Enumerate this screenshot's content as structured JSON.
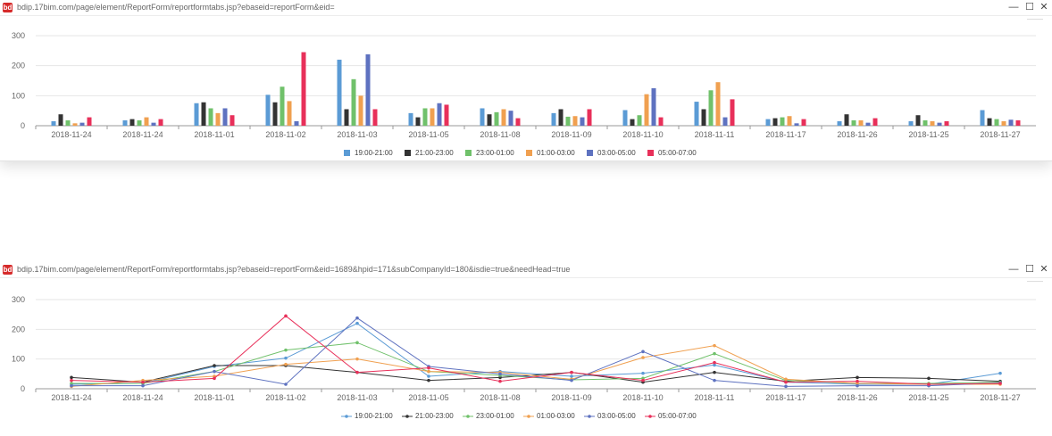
{
  "windows": [
    {
      "url": "bdip.17bim.com/page/element/ReportForm/reportformtabs.jsp?ebaseid=reportForm&eid=",
      "logo": "bd"
    },
    {
      "url": "bdip.17bim.com/page/element/ReportForm/reportformtabs.jsp?ebaseid=reportForm&eid=1689&hpid=171&subCompanyId=180&isdie=true&needHead=true",
      "logo": "bd"
    }
  ],
  "window_controls": {
    "minimize": "—",
    "maximize": "☐",
    "close": "✕"
  },
  "chart_data": [
    {
      "type": "bar",
      "categories": [
        "2018-11-24",
        "2018-11-24",
        "2018-11-01",
        "2018-11-02",
        "2018-11-03",
        "2018-11-05",
        "2018-11-08",
        "2018-11-09",
        "2018-11-10",
        "2018-11-11",
        "2018-11-17",
        "2018-11-26",
        "2018-11-25",
        "2018-11-27"
      ],
      "ylim": [
        0,
        300
      ],
      "yticks": [
        0,
        100,
        200,
        300
      ],
      "grid": true,
      "legend_position": "bottom",
      "series": [
        {
          "name": "19:00-21:00",
          "color": "#5b9bd5",
          "values": [
            15,
            18,
            75,
            103,
            220,
            42,
            58,
            42,
            52,
            80,
            22,
            15,
            15,
            52
          ]
        },
        {
          "name": "21:00-23:00",
          "color": "#333333",
          "values": [
            38,
            22,
            78,
            78,
            55,
            28,
            38,
            55,
            22,
            55,
            25,
            38,
            35,
            25
          ]
        },
        {
          "name": "23:00-01:00",
          "color": "#70c16b",
          "values": [
            18,
            18,
            58,
            130,
            155,
            58,
            45,
            30,
            35,
            118,
            28,
            18,
            18,
            22
          ]
        },
        {
          "name": "01:00-03:00",
          "color": "#f0a050",
          "values": [
            8,
            28,
            42,
            82,
            100,
            58,
            55,
            32,
            105,
            145,
            32,
            18,
            15,
            15
          ]
        },
        {
          "name": "03:00-05:00",
          "color": "#5e72c0",
          "values": [
            10,
            10,
            58,
            15,
            238,
            75,
            50,
            28,
            125,
            28,
            8,
            10,
            10,
            20
          ]
        },
        {
          "name": "05:00-07:00",
          "color": "#e8305a",
          "values": [
            28,
            22,
            35,
            245,
            55,
            70,
            25,
            55,
            28,
            88,
            22,
            25,
            15,
            18
          ]
        }
      ]
    },
    {
      "type": "line",
      "categories": [
        "2018-11-24",
        "2018-11-24",
        "2018-11-01",
        "2018-11-02",
        "2018-11-03",
        "2018-11-05",
        "2018-11-08",
        "2018-11-09",
        "2018-11-10",
        "2018-11-11",
        "2018-11-17",
        "2018-11-26",
        "2018-11-25",
        "2018-11-27"
      ],
      "ylim": [
        0,
        300
      ],
      "yticks": [
        0,
        100,
        200,
        300
      ],
      "grid": true,
      "legend_position": "bottom",
      "series": [
        {
          "name": "19:00-21:00",
          "color": "#5b9bd5",
          "values": [
            15,
            18,
            75,
            103,
            220,
            42,
            58,
            42,
            52,
            80,
            22,
            15,
            15,
            52
          ]
        },
        {
          "name": "21:00-23:00",
          "color": "#333333",
          "values": [
            38,
            22,
            78,
            78,
            55,
            28,
            38,
            55,
            22,
            55,
            25,
            38,
            35,
            25
          ]
        },
        {
          "name": "23:00-01:00",
          "color": "#70c16b",
          "values": [
            18,
            18,
            58,
            130,
            155,
            58,
            45,
            30,
            35,
            118,
            28,
            18,
            18,
            22
          ]
        },
        {
          "name": "01:00-03:00",
          "color": "#f0a050",
          "values": [
            8,
            28,
            42,
            82,
            100,
            58,
            55,
            32,
            105,
            145,
            32,
            18,
            15,
            15
          ]
        },
        {
          "name": "03:00-05:00",
          "color": "#5e72c0",
          "values": [
            10,
            10,
            58,
            15,
            238,
            75,
            50,
            28,
            125,
            28,
            8,
            10,
            10,
            20
          ]
        },
        {
          "name": "05:00-07:00",
          "color": "#e8305a",
          "values": [
            28,
            22,
            35,
            245,
            55,
            70,
            25,
            55,
            28,
            88,
            22,
            25,
            15,
            18
          ]
        }
      ]
    }
  ]
}
